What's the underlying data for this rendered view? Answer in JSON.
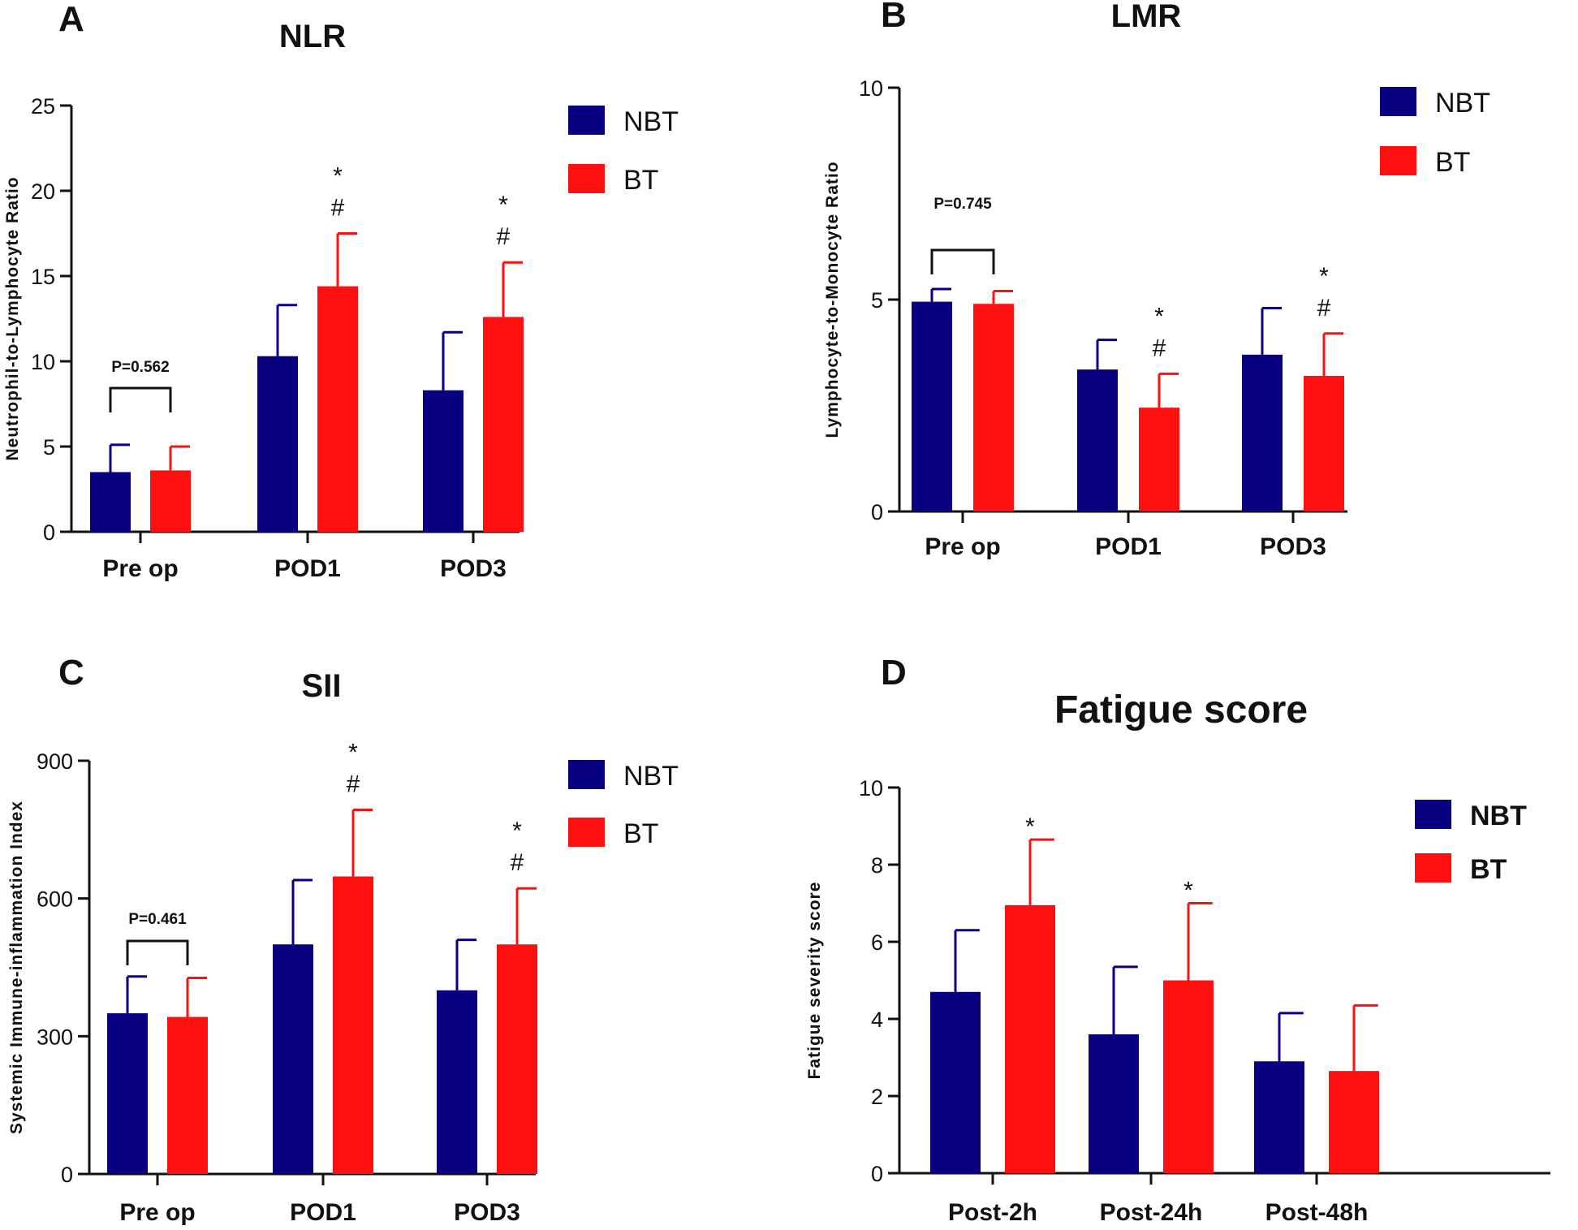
{
  "colors": {
    "NBT": "#08007f",
    "BT": "#ff1010"
  },
  "chart_data": [
    {
      "panel": "A",
      "type": "bar",
      "title": "NLR",
      "ylabel": "Neutrophil-to-Lymphocyte Ratio",
      "xlabel": "",
      "ylim": [
        0,
        25
      ],
      "yticks": [
        0,
        5,
        10,
        15,
        20,
        25
      ],
      "ytick_labels": [
        "0",
        "5",
        "10",
        "15",
        "20",
        "25"
      ],
      "categories": [
        "Pre op",
        "POD1",
        "POD3"
      ],
      "series": [
        {
          "name": "NBT",
          "values": [
            3.5,
            10.3,
            8.3
          ],
          "errors": [
            1.6,
            3.0,
            3.4
          ]
        },
        {
          "name": "BT",
          "values": [
            3.6,
            14.4,
            12.6
          ],
          "errors": [
            1.4,
            3.1,
            3.2
          ]
        }
      ],
      "legend": [
        "NBT",
        "BT"
      ],
      "pvalue_text": "P=0.562",
      "significance": [
        {
          "category": "POD1",
          "series": "BT",
          "marks": [
            "*",
            "#"
          ]
        },
        {
          "category": "POD3",
          "series": "BT",
          "marks": [
            "*",
            "#"
          ]
        }
      ]
    },
    {
      "panel": "B",
      "type": "bar",
      "title": "LMR",
      "ylabel": "Lymphocyte-to-Monocyte Ratio",
      "xlabel": "",
      "ylim": [
        0,
        10
      ],
      "yticks": [
        0,
        5,
        10
      ],
      "ytick_labels": [
        "0",
        "5",
        "10"
      ],
      "categories": [
        "Pre op",
        "POD1",
        "POD3"
      ],
      "series": [
        {
          "name": "NBT",
          "values": [
            4.95,
            3.35,
            3.7
          ],
          "errors": [
            0.3,
            0.7,
            1.1
          ]
        },
        {
          "name": "BT",
          "values": [
            4.9,
            2.45,
            3.2
          ],
          "errors": [
            0.3,
            0.8,
            1.0
          ]
        }
      ],
      "legend": [
        "NBT",
        "BT"
      ],
      "pvalue_text": "P=0.745",
      "significance": [
        {
          "category": "POD1",
          "series": "BT",
          "marks": [
            "*",
            "#"
          ]
        },
        {
          "category": "POD3",
          "series": "BT",
          "marks": [
            "*",
            "#"
          ]
        }
      ]
    },
    {
      "panel": "C",
      "type": "bar",
      "title": "SII",
      "ylabel": "Systemic Immune-inflammation Index",
      "xlabel": "",
      "ylim": [
        0,
        900
      ],
      "yticks": [
        0,
        300,
        600,
        900
      ],
      "ytick_labels": [
        "0",
        "300",
        "600",
        "900"
      ],
      "categories": [
        "Pre op",
        "POD1",
        "POD3"
      ],
      "series": [
        {
          "name": "NBT",
          "values": [
            350,
            500,
            400
          ],
          "errors": [
            80,
            140,
            110
          ]
        },
        {
          "name": "BT",
          "values": [
            342,
            648,
            500
          ],
          "errors": [
            85,
            145,
            122
          ]
        }
      ],
      "legend": [
        "NBT",
        "BT"
      ],
      "pvalue_text": "P=0.461",
      "significance": [
        {
          "category": "POD1",
          "series": "BT",
          "marks": [
            "*",
            "#"
          ]
        },
        {
          "category": "POD3",
          "series": "BT",
          "marks": [
            "*",
            "#"
          ]
        }
      ]
    },
    {
      "panel": "D",
      "type": "bar",
      "title": "Fatigue score",
      "ylabel": "Fatigue severity score",
      "xlabel": "",
      "ylim": [
        0,
        10
      ],
      "yticks": [
        0,
        2,
        4,
        6,
        8,
        10
      ],
      "ytick_labels": [
        "0",
        "2",
        "4",
        "6",
        "8",
        "10"
      ],
      "categories": [
        "Post-2h",
        "Post-24h",
        "Post-48h"
      ],
      "series": [
        {
          "name": "NBT",
          "values": [
            4.7,
            3.6,
            2.9
          ],
          "errors": [
            1.6,
            1.75,
            1.25
          ]
        },
        {
          "name": "BT",
          "values": [
            6.95,
            5.0,
            2.65
          ],
          "errors": [
            1.7,
            2.0,
            1.7
          ]
        }
      ],
      "legend": [
        "NBT",
        "BT"
      ],
      "significance": [
        {
          "category": "Post-2h",
          "series": "BT",
          "marks": [
            "*"
          ]
        },
        {
          "category": "Post-24h",
          "series": "BT",
          "marks": [
            "*"
          ]
        }
      ]
    }
  ]
}
